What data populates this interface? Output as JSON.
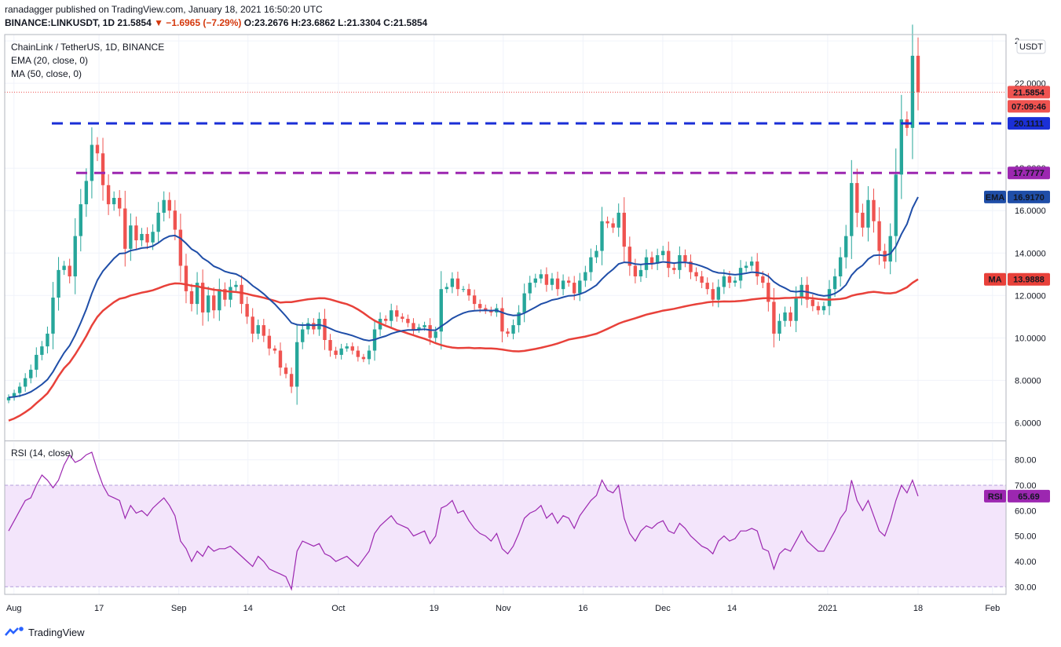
{
  "header": {
    "published": "ranadagger published on TradingView.com, January 18, 2021 16:50:20 UTC",
    "symbol": "BINANCE:LINKUSDT, 1D",
    "last": "21.5854",
    "change": "▼ −1.6965 (−7.29%)",
    "ohlc": "O:23.2676 H:23.6862 L:21.3304 C:21.5854"
  },
  "legend": {
    "title": "ChainLink / TetherUS, 1D, BINANCE",
    "ema": "EMA (20, close, 0)",
    "ma": "MA (50, close, 0)",
    "rsi": "RSI (14, close)"
  },
  "price_axis": {
    "currency": "USDT",
    "ticks": [
      "6.0000",
      "8.0000",
      "10.0000",
      "12.0000",
      "14.0000",
      "16.0000",
      "18.0000",
      "22.0000",
      "2"
    ],
    "tick_values": [
      6,
      8,
      10,
      12,
      14,
      16,
      18,
      22,
      24
    ]
  },
  "rsi_axis": {
    "ticks": [
      "30.00",
      "40.00",
      "50.00",
      "60.00",
      "70.00",
      "80.00"
    ],
    "tick_values": [
      30,
      40,
      50,
      60,
      70,
      80
    ]
  },
  "x_axis": {
    "labels": [
      "Aug",
      "17",
      "Sep",
      "14",
      "Oct",
      "19",
      "Nov",
      "16",
      "Dec",
      "14",
      "2021",
      "18",
      "Feb"
    ]
  },
  "badges": {
    "price": "21.5854",
    "countdown": "07:09:46",
    "blue_level": "20.1111",
    "purple_level": "17.7777",
    "ema_label": "EMA",
    "ema_value": "16.9170",
    "ma_label": "MA",
    "ma_value": "13.9888",
    "rsi_label": "RSI",
    "rsi_value": "65.69"
  },
  "brand": "TradingView",
  "colors": {
    "up": "#26a69a",
    "down": "#ef5350",
    "ema": "#1f4ea8",
    "ma": "#e8413a",
    "blue_line": "#1a2fd6",
    "purple_line": "#9c27b0",
    "rsi": "#9c27b0",
    "rsi_band": "#f3e5fb"
  },
  "chart_data": {
    "type": "candlestick",
    "title": "ChainLink / TetherUS, 1D, BINANCE",
    "interval": "1D",
    "start_date": "2020-07-31",
    "end_date": "2021-01-18",
    "ylim": [
      5.2,
      24.3
    ],
    "rsi_ylim": [
      27,
      87
    ],
    "horizontal_levels": [
      {
        "value": 20.1111,
        "style": "dashed",
        "color": "#1a2fd6"
      },
      {
        "value": 17.7777,
        "style": "dashed",
        "color": "#9c27b0"
      }
    ],
    "close": [
      7.2,
      7.4,
      7.7,
      8.1,
      8.5,
      9.2,
      9.6,
      10.2,
      11.9,
      13.2,
      13.4,
      12.9,
      14.8,
      16.3,
      17.4,
      19.1,
      18.7,
      17.2,
      16.3,
      16.6,
      16.1,
      14.2,
      15.3,
      14.6,
      14.9,
      14.5,
      15.0,
      15.9,
      16.5,
      16.0,
      15.1,
      13.4,
      12.2,
      11.6,
      12.6,
      11.2,
      12.0,
      11.3,
      12.3,
      11.8,
      12.4,
      12.5,
      11.6,
      11.0,
      10.2,
      10.6,
      10.1,
      9.5,
      9.4,
      8.6,
      8.3,
      7.7,
      9.8,
      10.4,
      10.7,
      10.4,
      10.9,
      9.9,
      9.4,
      9.2,
      9.5,
      9.6,
      9.4,
      9.1,
      9.0,
      9.4,
      10.4,
      10.9,
      10.8,
      11.3,
      11.0,
      10.9,
      10.7,
      10.4,
      10.5,
      10.6,
      10.0,
      10.3,
      12.3,
      12.4,
      12.8,
      12.3,
      12.3,
      12.0,
      11.6,
      11.4,
      11.3,
      11.2,
      11.4,
      10.3,
      10.2,
      10.6,
      11.2,
      12.1,
      12.6,
      12.8,
      13.0,
      12.5,
      12.8,
      12.3,
      12.7,
      12.6,
      12.1,
      12.7,
      13.1,
      13.8,
      14.1,
      15.5,
      15.4,
      15.2,
      15.9,
      14.3,
      13.4,
      12.9,
      13.2,
      13.8,
      13.5,
      13.9,
      14.1,
      13.3,
      13.2,
      13.9,
      13.6,
      13.1,
      12.9,
      12.6,
      12.3,
      11.8,
      12.4,
      12.9,
      12.6,
      12.7,
      13.3,
      13.4,
      13.6,
      12.9,
      12.6,
      11.7,
      10.2,
      10.8,
      11.2,
      10.8,
      11.9,
      12.5,
      11.8,
      11.5,
      11.3,
      11.5,
      12.3,
      12.9,
      13.8,
      14.8,
      17.3,
      15.9,
      15.2,
      16.5,
      15.5,
      14.1,
      13.6,
      14.8,
      17.7,
      20.3,
      19.9,
      23.3,
      21.5854
    ],
    "rsi": [
      52,
      56,
      60,
      64,
      65,
      70,
      74,
      72,
      69,
      72,
      78,
      82,
      79,
      80,
      82,
      83,
      76,
      70,
      66,
      65,
      64,
      57,
      62,
      59,
      60,
      58,
      61,
      63,
      65,
      62,
      58,
      48,
      45,
      40,
      44,
      42,
      46,
      44,
      45,
      45,
      46,
      44,
      42,
      40,
      38,
      42,
      40,
      37,
      36,
      35,
      34,
      29,
      44,
      48,
      47,
      46,
      47,
      43,
      42,
      40,
      41,
      42,
      40,
      38,
      41,
      44,
      51,
      54,
      56,
      58,
      55,
      54,
      53,
      50,
      51,
      52,
      47,
      50,
      61,
      62,
      64,
      59,
      60,
      56,
      53,
      51,
      50,
      48,
      51,
      45,
      43,
      46,
      51,
      57,
      59,
      60,
      62,
      57,
      59,
      55,
      58,
      57,
      53,
      58,
      61,
      64,
      66,
      72,
      68,
      67,
      70,
      57,
      51,
      48,
      52,
      54,
      53,
      55,
      56,
      52,
      51,
      55,
      53,
      50,
      48,
      46,
      45,
      43,
      48,
      50,
      48,
      49,
      52,
      52,
      53,
      52,
      45,
      44,
      37,
      43,
      45,
      44,
      48,
      52,
      48,
      46,
      44,
      44,
      48,
      52,
      57,
      60,
      72,
      64,
      60,
      64,
      58,
      52,
      50,
      56,
      64,
      70,
      67,
      72,
      65.69
    ]
  }
}
